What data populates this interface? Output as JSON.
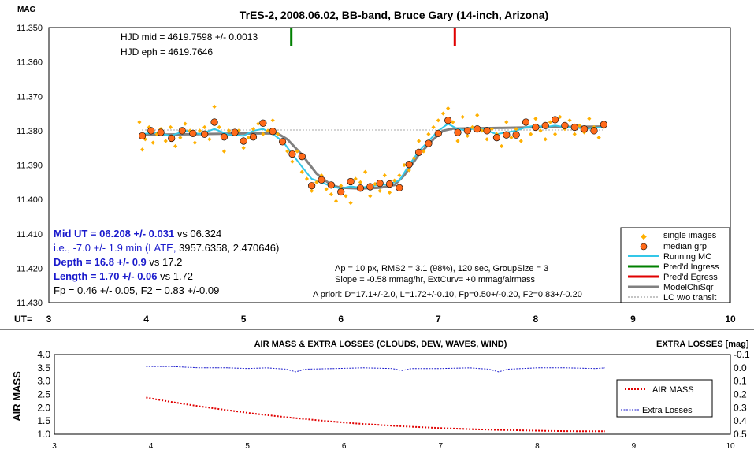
{
  "chart_data": [
    {
      "type": "scatter",
      "title": "TrES-2, 2008.06.02, BB-band, Bruce Gary (14-inch, Arizona)",
      "ylabel": "MAG",
      "xlabel": "UT=",
      "xlim": [
        3,
        10
      ],
      "ylim": [
        11.35,
        11.43
      ],
      "y_inverted": true,
      "x_ticks": [
        "3",
        "4",
        "5",
        "6",
        "7",
        "8",
        "9",
        "10"
      ],
      "y_ticks": [
        "11.350",
        "11.360",
        "11.370",
        "11.380",
        "11.390",
        "11.400",
        "11.410",
        "11.420",
        "11.430"
      ],
      "annotations": {
        "hjd_mid": "HJD mid = 4619.7598 +/- 0.0013",
        "hjd_eph": "HJD eph = 4619.7646",
        "mid_ut": "Mid UT = 06.208 +/- 0.031",
        "mid_ut_vs": " vs 06.324",
        "ie_line_blue": "i.e., -7.0 +/- 1.9 min (LATE,",
        "ie_line_black": " 3957.6358, 2.470646)",
        "depth": "Depth = 16.8 +/- 0.9",
        "depth_vs": " vs 17.2",
        "length": "Length = 1.70 +/- 0.06",
        "length_vs": " vs 1.72",
        "fp": "Fp = 0.46 +/- 0.05, F2 = 0.83 +/-0.09",
        "ap": "Ap = 10 px, RMS2 = 3.1 (98%), 120 sec, GroupSize = 3",
        "slope": "Slope = -0.58 mmag/hr, ExtCurv= +0 mmag/airmass",
        "apriori": "A priori: D=17.1+/-2.0, L=1.72+/-0.10, Fp=0.50+/-0.20, F2=0.83+/-0.20"
      },
      "legend": [
        "single images",
        "median grp",
        "Running MC",
        "Pred'd Ingress",
        "Pred'd Egress",
        "ModelChiSqr",
        "LC w/o transit"
      ],
      "legend_position": "bottom-right",
      "ingress_ut": 5.49,
      "egress_ut": 7.17,
      "colors": {
        "single": "#ffb000",
        "median_fill": "#ff6a1a",
        "running": "#33c7e8",
        "ingress": "#008000",
        "egress": "#e00000",
        "model": "#808080",
        "baseline": "#999999",
        "blue_text": "#1a1acc"
      },
      "median_grp": {
        "x": [
          3.96,
          4.05,
          4.15,
          4.26,
          4.37,
          4.48,
          4.6,
          4.7,
          4.8,
          4.91,
          5.0,
          5.1,
          5.2,
          5.3,
          5.4,
          5.5,
          5.6,
          5.7,
          5.8,
          5.9,
          6.0,
          6.1,
          6.2,
          6.3,
          6.4,
          6.5,
          6.6,
          6.7,
          6.8,
          6.9,
          7.0,
          7.1,
          7.2,
          7.3,
          7.4,
          7.5,
          7.6,
          7.7,
          7.8,
          7.9,
          8.0,
          8.1,
          8.2,
          8.3,
          8.4,
          8.5,
          8.6,
          8.7
        ],
        "y": [
          11.3815,
          11.38,
          11.3805,
          11.3822,
          11.38,
          11.3808,
          11.381,
          11.3775,
          11.3818,
          11.3805,
          11.383,
          11.3818,
          11.3778,
          11.3802,
          11.3832,
          11.3868,
          11.3875,
          11.396,
          11.3943,
          11.3958,
          11.3978,
          11.3948,
          11.3967,
          11.3963,
          11.3953,
          11.3955,
          11.3966,
          11.3898,
          11.3863,
          11.3837,
          11.3808,
          11.377,
          11.3805,
          11.38,
          11.3795,
          11.38,
          11.382,
          11.3812,
          11.3812,
          11.3775,
          11.379,
          11.3785,
          11.3768,
          11.3785,
          11.379,
          11.3795,
          11.38,
          11.3782
        ]
      },
      "single_images": {
        "x": [
          3.93,
          3.96,
          3.99,
          4.03,
          4.07,
          4.11,
          4.15,
          4.2,
          4.25,
          4.3,
          4.35,
          4.4,
          4.45,
          4.5,
          4.55,
          4.6,
          4.65,
          4.7,
          4.75,
          4.8,
          4.85,
          4.9,
          4.95,
          5.0,
          5.05,
          5.1,
          5.15,
          5.2,
          5.25,
          5.3,
          5.35,
          5.4,
          5.45,
          5.5,
          5.55,
          5.6,
          5.65,
          5.7,
          5.75,
          5.8,
          5.85,
          5.9,
          5.95,
          6.0,
          6.05,
          6.1,
          6.15,
          6.2,
          6.25,
          6.3,
          6.35,
          6.4,
          6.45,
          6.5,
          6.55,
          6.6,
          6.65,
          6.7,
          6.75,
          6.8,
          6.85,
          6.9,
          6.95,
          7.0,
          7.05,
          7.1,
          7.15,
          7.2,
          7.25,
          7.3,
          7.35,
          7.4,
          7.45,
          7.5,
          7.55,
          7.6,
          7.65,
          7.7,
          7.75,
          7.8,
          7.85,
          7.9,
          7.95,
          8.0,
          8.05,
          8.1,
          8.15,
          8.2,
          8.25,
          8.3,
          8.35,
          8.4,
          8.45,
          8.5,
          8.55,
          8.6,
          8.65,
          8.7
        ],
        "y": [
          11.3775,
          11.3855,
          11.3825,
          11.379,
          11.3835,
          11.381,
          11.3795,
          11.383,
          11.379,
          11.3845,
          11.382,
          11.378,
          11.38,
          11.3835,
          11.38,
          11.379,
          11.3825,
          11.373,
          11.379,
          11.386,
          11.38,
          11.381,
          11.38,
          11.385,
          11.382,
          11.3795,
          11.378,
          11.381,
          11.38,
          11.377,
          11.381,
          11.383,
          11.386,
          11.389,
          11.386,
          11.392,
          11.394,
          11.3975,
          11.395,
          11.393,
          11.397,
          11.3985,
          11.4005,
          11.396,
          11.399,
          11.401,
          11.394,
          11.395,
          11.392,
          11.399,
          11.3955,
          11.3975,
          11.393,
          11.398,
          11.3945,
          11.393,
          11.39,
          11.3915,
          11.388,
          11.383,
          11.386,
          11.381,
          11.379,
          11.377,
          11.375,
          11.3735,
          11.3775,
          11.383,
          11.376,
          11.3815,
          11.379,
          11.3755,
          11.38,
          11.3825,
          11.3795,
          11.381,
          11.3845,
          11.3775,
          11.382,
          11.3795,
          11.383,
          11.378,
          11.381,
          11.3765,
          11.38,
          11.3825,
          11.3775,
          11.381,
          11.376,
          11.3795,
          11.377,
          11.381,
          11.3785,
          11.3805,
          11.3765,
          11.379,
          11.382,
          11.379
        ]
      },
      "model": {
        "x": [
          3.95,
          4.5,
          5.0,
          5.35,
          5.45,
          5.6,
          5.75,
          5.9,
          6.0,
          6.2,
          6.4,
          6.55,
          6.65,
          6.8,
          6.95,
          7.05,
          7.15,
          7.6,
          8.0,
          8.7
        ],
        "y": [
          11.3812,
          11.381,
          11.3808,
          11.3808,
          11.3825,
          11.387,
          11.3925,
          11.3958,
          11.3966,
          11.3968,
          11.3966,
          11.3958,
          11.393,
          11.387,
          11.3825,
          11.38,
          11.3794,
          11.3792,
          11.379,
          11.3788
        ]
      },
      "running_mc": {
        "x": [
          3.95,
          4.1,
          4.25,
          4.4,
          4.55,
          4.7,
          4.85,
          5.0,
          5.1,
          5.2,
          5.3,
          5.4,
          5.5,
          5.6,
          5.7,
          5.8,
          5.9,
          6.0,
          6.1,
          6.2,
          6.3,
          6.4,
          6.5,
          6.6,
          6.7,
          6.8,
          6.9,
          7.0,
          7.1,
          7.2,
          7.3,
          7.4,
          7.5,
          7.6,
          7.7,
          7.8,
          7.9,
          8.0,
          8.1,
          8.2,
          8.3,
          8.4,
          8.5,
          8.6,
          8.7
        ],
        "y": [
          11.381,
          11.3805,
          11.3815,
          11.38,
          11.381,
          11.3795,
          11.3812,
          11.3815,
          11.38,
          11.3795,
          11.381,
          11.383,
          11.3868,
          11.3905,
          11.394,
          11.395,
          11.3962,
          11.3968,
          11.3962,
          11.3966,
          11.3962,
          11.3958,
          11.3955,
          11.3945,
          11.39,
          11.386,
          11.383,
          11.38,
          11.378,
          11.3795,
          11.38,
          11.379,
          11.38,
          11.381,
          11.3805,
          11.38,
          11.379,
          11.3785,
          11.379,
          11.3785,
          11.379,
          11.379,
          11.3795,
          11.3792,
          11.379
        ]
      }
    },
    {
      "type": "line",
      "title": "AIR MASS & EXTRA LOSSES (CLOUDS, DEW, WAVES, WIND)",
      "ylabel": "AIR MASS",
      "y2label": "EXTRA LOSSES [mag]",
      "xlim": [
        3,
        10
      ],
      "ylim": [
        1.0,
        4.0
      ],
      "y2lim": [
        -0.1,
        0.5
      ],
      "y2_inverted": true,
      "x_ticks": [
        "3",
        "4",
        "5",
        "6",
        "7",
        "8",
        "9",
        "10"
      ],
      "y_ticks": [
        "1.0",
        "1.5",
        "2.0",
        "2.5",
        "3.0",
        "3.5",
        "4.0"
      ],
      "y2_ticks": [
        "-0.1",
        "0.0",
        "0.1",
        "0.2",
        "0.3",
        "0.4",
        "0.5"
      ],
      "legend": [
        "AIR MASS",
        "Extra Losses"
      ],
      "legend_position": "right",
      "colors": {
        "airmass": "#e00000",
        "losses": "#1a1acc"
      },
      "airmass": {
        "x": [
          3.95,
          4.2,
          4.5,
          4.8,
          5.1,
          5.45,
          5.8,
          6.1,
          6.4,
          6.7,
          7.0,
          7.3,
          7.6,
          7.9,
          8.2,
          8.5,
          8.7
        ],
        "y": [
          2.38,
          2.22,
          2.05,
          1.9,
          1.76,
          1.62,
          1.5,
          1.41,
          1.34,
          1.28,
          1.23,
          1.19,
          1.16,
          1.14,
          1.12,
          1.11,
          1.11
        ]
      },
      "losses": {
        "x": [
          3.95,
          4.2,
          4.5,
          4.8,
          5.0,
          5.2,
          5.4,
          5.5,
          5.6,
          5.9,
          6.2,
          6.5,
          6.6,
          6.7,
          7.0,
          7.3,
          7.5,
          7.6,
          7.7,
          8.0,
          8.3,
          8.6,
          8.7
        ],
        "y": [
          -0.01,
          -0.01,
          0.0,
          0.0,
          0.005,
          0.0,
          0.01,
          0.03,
          0.01,
          0.005,
          0.0,
          0.005,
          0.02,
          0.005,
          0.005,
          0.0,
          0.01,
          0.03,
          0.01,
          0.0,
          0.0,
          0.005,
          0.0
        ]
      }
    }
  ]
}
